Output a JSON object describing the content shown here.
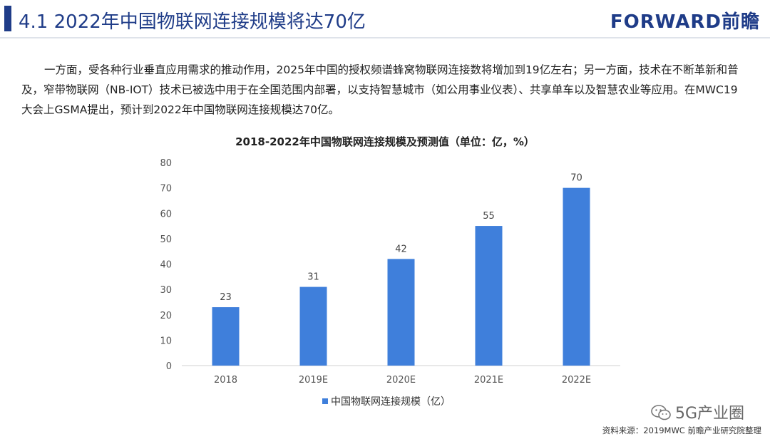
{
  "header": {
    "title": "4.1  2022年中国物联网连接规模将达70亿",
    "brand": "FORWARD前瞻"
  },
  "body": {
    "paragraph": "一方面，受各种行业垂直应用需求的推动作用，2025年中国的授权频谱蜂窝物联网连接数将增加到19亿左右；另一方面，技术在不断革新和普及，窄带物联网（NB-IOT）技术已被选中用于在全国范围内部署，以支持智慧城市（如公用事业仪表）、共享单车以及智慧农业等应用。在MWC19 大会上GSMA提出，预计到2022年中国物联网连接规模达70亿。"
  },
  "chart_data": {
    "type": "bar",
    "title": "2018-2022年中国物联网连接规模及预测值（单位：亿，%）",
    "categories": [
      "2018",
      "2019E",
      "2020E",
      "2021E",
      "2022E"
    ],
    "series": [
      {
        "name": "中国物联网连接规模（亿）",
        "values": [
          23,
          31,
          42,
          55,
          70
        ],
        "color": "#3f7fdb"
      }
    ],
    "data_labels": [
      "23",
      "31",
      "42",
      "55",
      "70"
    ],
    "yticks": [
      "0",
      "10",
      "20",
      "30",
      "40",
      "50",
      "60",
      "70",
      "80"
    ],
    "ylim": [
      0,
      80
    ],
    "grid": false,
    "legend_position": "bottom"
  },
  "footer": {
    "source": "资料来源：2019MWC 前瞻产业研究院整理",
    "wechat": "5G产业圈"
  },
  "colors": {
    "accent": "#1f3c88",
    "bar": "#3f7fdb"
  }
}
